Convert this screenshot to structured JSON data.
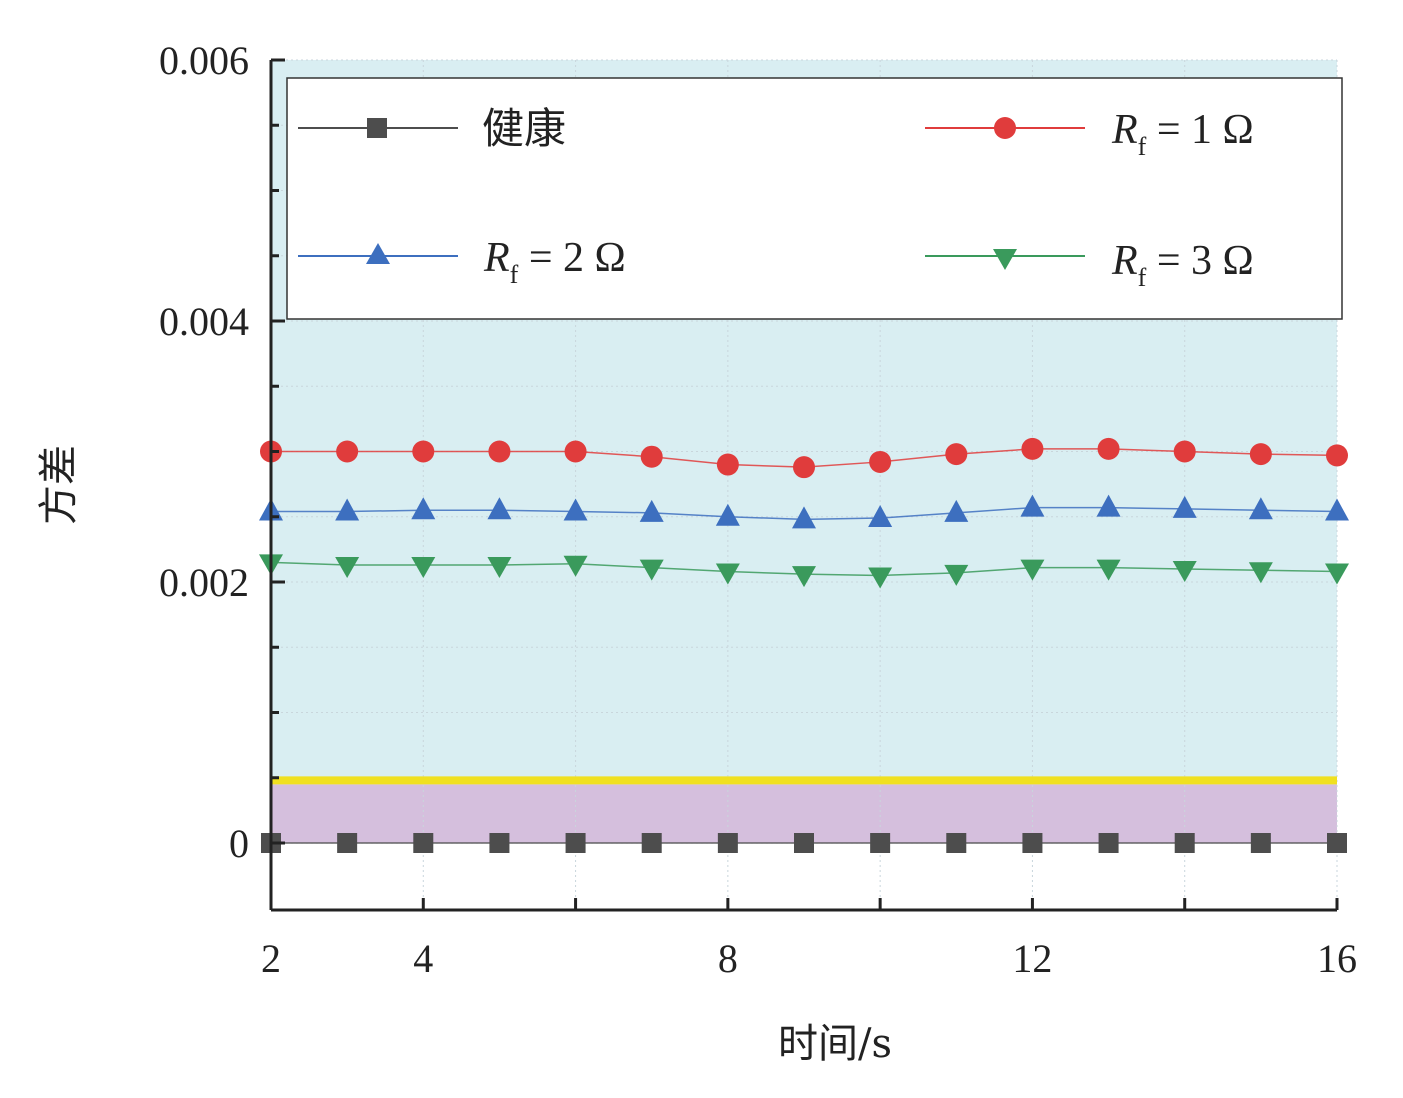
{
  "chart_data": {
    "type": "line",
    "xlabel": "时间/s",
    "ylabel": "方差",
    "xlim": [
      2,
      16
    ],
    "ylim": [
      -0.0005,
      0.006
    ],
    "xticks": [
      2,
      4,
      8,
      12,
      16
    ],
    "yticks": [
      0,
      0.002,
      0.004,
      0.006
    ],
    "ytick_labels": [
      "0",
      "0.002",
      "0.004",
      "0.006"
    ],
    "grid": true,
    "legend_position": "top",
    "x": [
      2,
      3,
      4,
      5,
      6,
      7,
      8,
      9,
      10,
      11,
      12,
      13,
      14,
      15,
      16
    ],
    "series": [
      {
        "name": "健康",
        "marker": "square",
        "color": "#4d4d4d",
        "values": [
          0,
          0,
          0,
          0,
          0,
          0,
          0,
          0,
          0,
          0,
          0,
          0,
          0,
          0,
          0
        ]
      },
      {
        "name": "Rf = 1 Ω",
        "name_main": "R",
        "name_sub": "f",
        "name_rest": " = 1 Ω",
        "marker": "circle",
        "color": "#e03c3c",
        "values": [
          0.003,
          0.003,
          0.003,
          0.003,
          0.003,
          0.00296,
          0.0029,
          0.00288,
          0.00292,
          0.00298,
          0.00302,
          0.00302,
          0.003,
          0.00298,
          0.00297
        ]
      },
      {
        "name": "Rf = 2 Ω",
        "name_main": "R",
        "name_sub": "f",
        "name_rest": " = 2 Ω",
        "marker": "triangle-up",
        "color": "#3d6fbf",
        "values": [
          0.00254,
          0.00254,
          0.00255,
          0.00255,
          0.00254,
          0.00253,
          0.0025,
          0.00248,
          0.00249,
          0.00253,
          0.00257,
          0.00257,
          0.00256,
          0.00255,
          0.00254
        ]
      },
      {
        "name": "Rf = 3 Ω",
        "name_main": "R",
        "name_sub": "f",
        "name_rest": " = 3 Ω",
        "marker": "triangle-down",
        "color": "#3a9a5c",
        "values": [
          0.00215,
          0.00213,
          0.00213,
          0.00213,
          0.00214,
          0.00211,
          0.00208,
          0.00206,
          0.00205,
          0.00207,
          0.00211,
          0.00211,
          0.0021,
          0.00209,
          0.00208
        ]
      }
    ],
    "bands": [
      {
        "from": 0.0005,
        "to": 0.006,
        "color": "#d9eef2"
      },
      {
        "from": 0,
        "to": 0.00045,
        "color": "#d5bfdd"
      }
    ],
    "threshold": {
      "value": 0.00048,
      "color": "#f0e020"
    }
  }
}
